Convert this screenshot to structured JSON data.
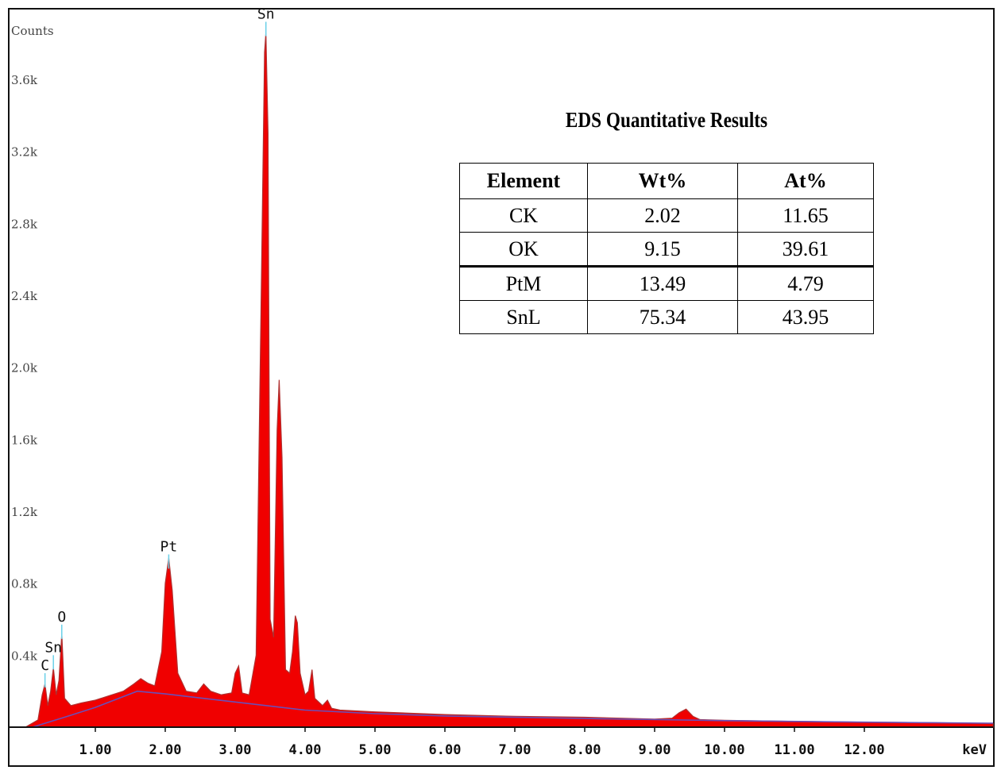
{
  "chart_data": {
    "type": "area",
    "ylabel": "Counts",
    "xlabel": "keV",
    "xlim": [
      0.0,
      14.0
    ],
    "ylim": [
      0,
      3900
    ],
    "y_ticks": [
      {
        "value": 400,
        "label": "0.4k"
      },
      {
        "value": 800,
        "label": "0.8k"
      },
      {
        "value": 1200,
        "label": "1.2k"
      },
      {
        "value": 1600,
        "label": "1.6k"
      },
      {
        "value": 2000,
        "label": "2.0k"
      },
      {
        "value": 2400,
        "label": "2.4k"
      },
      {
        "value": 2800,
        "label": "2.8k"
      },
      {
        "value": 3200,
        "label": "3.2k"
      },
      {
        "value": 3600,
        "label": "3.6k"
      }
    ],
    "x_ticks": [
      {
        "value": 1.0,
        "label": "1.00"
      },
      {
        "value": 2.0,
        "label": "2.00"
      },
      {
        "value": 3.0,
        "label": "3.00"
      },
      {
        "value": 4.0,
        "label": "4.00"
      },
      {
        "value": 5.0,
        "label": "5.00"
      },
      {
        "value": 6.0,
        "label": "6.00"
      },
      {
        "value": 7.0,
        "label": "7.00"
      },
      {
        "value": 8.0,
        "label": "8.00"
      },
      {
        "value": 9.0,
        "label": "9.00"
      },
      {
        "value": 10.0,
        "label": "10.00"
      },
      {
        "value": 11.0,
        "label": "11.00"
      },
      {
        "value": 12.0,
        "label": "12.00"
      }
    ],
    "peak_labels": [
      {
        "label": "C",
        "x": 0.28,
        "y": 300
      },
      {
        "label": "Sn",
        "x": 0.4,
        "y": 400
      },
      {
        "label": "O",
        "x": 0.52,
        "y": 570
      },
      {
        "label": "Pt",
        "x": 2.05,
        "y": 960
      },
      {
        "label": "Sn",
        "x": 3.44,
        "y": 3920
      }
    ],
    "spectrum": [
      [
        0.0,
        0
      ],
      [
        0.18,
        40
      ],
      [
        0.24,
        180
      ],
      [
        0.28,
        240
      ],
      [
        0.32,
        120
      ],
      [
        0.36,
        200
      ],
      [
        0.4,
        330
      ],
      [
        0.44,
        180
      ],
      [
        0.48,
        260
      ],
      [
        0.52,
        520
      ],
      [
        0.56,
        160
      ],
      [
        0.65,
        120
      ],
      [
        0.8,
        135
      ],
      [
        1.0,
        150
      ],
      [
        1.2,
        175
      ],
      [
        1.4,
        200
      ],
      [
        1.55,
        240
      ],
      [
        1.65,
        270
      ],
      [
        1.75,
        245
      ],
      [
        1.85,
        230
      ],
      [
        1.95,
        420
      ],
      [
        2.0,
        800
      ],
      [
        2.05,
        940
      ],
      [
        2.1,
        760
      ],
      [
        2.18,
        300
      ],
      [
        2.3,
        200
      ],
      [
        2.45,
        190
      ],
      [
        2.55,
        240
      ],
      [
        2.65,
        200
      ],
      [
        2.8,
        180
      ],
      [
        2.95,
        190
      ],
      [
        3.0,
        300
      ],
      [
        3.05,
        340
      ],
      [
        3.1,
        190
      ],
      [
        3.2,
        180
      ],
      [
        3.3,
        400
      ],
      [
        3.38,
        2600
      ],
      [
        3.42,
        3750
      ],
      [
        3.44,
        3860
      ],
      [
        3.47,
        3300
      ],
      [
        3.5,
        600
      ],
      [
        3.55,
        500
      ],
      [
        3.6,
        1650
      ],
      [
        3.63,
        1930
      ],
      [
        3.67,
        1500
      ],
      [
        3.72,
        320
      ],
      [
        3.78,
        300
      ],
      [
        3.82,
        420
      ],
      [
        3.86,
        620
      ],
      [
        3.89,
        580
      ],
      [
        3.93,
        300
      ],
      [
        4.0,
        180
      ],
      [
        4.05,
        200
      ],
      [
        4.1,
        320
      ],
      [
        4.14,
        160
      ],
      [
        4.25,
        120
      ],
      [
        4.32,
        150
      ],
      [
        4.38,
        105
      ],
      [
        4.5,
        95
      ],
      [
        5.0,
        85
      ],
      [
        6.0,
        70
      ],
      [
        7.0,
        60
      ],
      [
        8.0,
        55
      ],
      [
        9.0,
        45
      ],
      [
        9.25,
        50
      ],
      [
        9.35,
        80
      ],
      [
        9.45,
        100
      ],
      [
        9.55,
        60
      ],
      [
        9.65,
        42
      ],
      [
        10.0,
        38
      ],
      [
        11.0,
        32
      ],
      [
        12.0,
        28
      ],
      [
        13.0,
        25
      ],
      [
        14.0,
        20
      ]
    ],
    "background": [
      [
        0.1,
        0
      ],
      [
        0.6,
        60
      ],
      [
        1.0,
        110
      ],
      [
        1.6,
        200
      ],
      [
        2.0,
        185
      ],
      [
        3.0,
        140
      ],
      [
        4.0,
        95
      ],
      [
        5.0,
        75
      ],
      [
        6.0,
        62
      ],
      [
        8.0,
        48
      ],
      [
        10.0,
        36
      ],
      [
        12.0,
        28
      ],
      [
        14.0,
        22
      ]
    ],
    "colors": {
      "fill": "#f00000",
      "outline": "#b03030",
      "background_line": "#6a4fb8",
      "axis": "#111111"
    },
    "table": {
      "title": "EDS Quantitative Results",
      "headers": [
        "Element",
        "Wt%",
        "At%"
      ],
      "rows": [
        [
          "CK",
          "2.02",
          "11.65"
        ],
        [
          "OK",
          "9.15",
          "39.61"
        ],
        [
          "PtM",
          "13.49",
          "4.79"
        ],
        [
          "SnL",
          "75.34",
          "43.95"
        ]
      ]
    }
  }
}
